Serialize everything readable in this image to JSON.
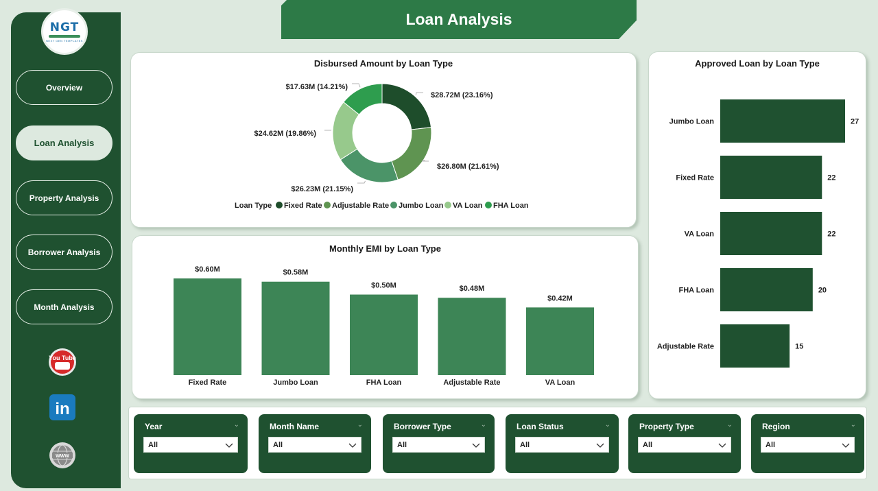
{
  "title": "Loan Analysis",
  "logo": {
    "text": "NGT",
    "subtitle": "NEXT GEN TEMPLATES"
  },
  "nav": [
    {
      "label": "Overview",
      "active": false
    },
    {
      "label": "Loan Analysis",
      "active": true
    },
    {
      "label": "Property Analysis",
      "active": false
    },
    {
      "label": "Borrower Analysis",
      "active": false
    },
    {
      "label": "Month Analysis",
      "active": false
    }
  ],
  "social": [
    {
      "icon": "youtube-icon",
      "text": "You Tube"
    },
    {
      "icon": "linkedin-icon",
      "text": "in"
    },
    {
      "icon": "www-icon",
      "text": "WWW"
    }
  ],
  "colors": {
    "sidebar": "#1f5130",
    "banner": "#2d7a47",
    "background": "#dde9df",
    "bar_emi": "#3d8556",
    "bar_approved": "#1f5130"
  },
  "donut": {
    "title": "Disbursed Amount by Loan Type",
    "legend_title": "Loan Type"
  },
  "emi": {
    "title": "Monthly EMI by Loan Type"
  },
  "approved": {
    "title": "Approved Loan by Loan Type"
  },
  "chart_data": [
    {
      "type": "pie",
      "title": "Disbursed Amount by Loan Type",
      "legend_title": "Loan Type",
      "slices": [
        {
          "name": "Fixed Rate",
          "value": 28.72,
          "percent": 23.16,
          "label": "$28.72M (23.16%)",
          "color": "#1e4d2b"
        },
        {
          "name": "Adjustable Rate",
          "value": 26.8,
          "percent": 21.61,
          "label": "$26.80M (21.61%)",
          "color": "#5f9451"
        },
        {
          "name": "Jumbo Loan",
          "value": 26.23,
          "percent": 21.15,
          "label": "$26.23M (21.15%)",
          "color": "#4b9468"
        },
        {
          "name": "VA Loan",
          "value": 24.62,
          "percent": 19.86,
          "label": "$24.62M (19.86%)",
          "color": "#97c98c"
        },
        {
          "name": "FHA Loan",
          "value": 17.63,
          "percent": 14.21,
          "label": "$17.63M (14.21%)",
          "color": "#2e9d4e"
        }
      ],
      "legend": "bottom"
    },
    {
      "type": "bar",
      "title": "Monthly EMI by Loan Type",
      "categories": [
        "Fixed Rate",
        "Jumbo Loan",
        "FHA Loan",
        "Adjustable Rate",
        "VA Loan"
      ],
      "values": [
        0.6,
        0.58,
        0.5,
        0.48,
        0.42
      ],
      "labels": [
        "$0.60M",
        "$0.58M",
        "$0.50M",
        "$0.48M",
        "$0.42M"
      ],
      "ylim": [
        0,
        0.63
      ]
    },
    {
      "type": "bar",
      "orientation": "horizontal",
      "title": "Approved Loan by Loan Type",
      "categories": [
        "Jumbo Loan",
        "Fixed Rate",
        "VA Loan",
        "FHA Loan",
        "Adjustable Rate"
      ],
      "values": [
        27,
        22,
        22,
        20,
        15
      ],
      "xlim": [
        0,
        27
      ]
    }
  ],
  "filters": [
    {
      "label": "Year",
      "value": "All"
    },
    {
      "label": "Month Name",
      "value": "All"
    },
    {
      "label": "Borrower Type",
      "value": "All"
    },
    {
      "label": "Loan Status",
      "value": "All"
    },
    {
      "label": "Property Type",
      "value": "All"
    },
    {
      "label": "Region",
      "value": "All"
    }
  ]
}
